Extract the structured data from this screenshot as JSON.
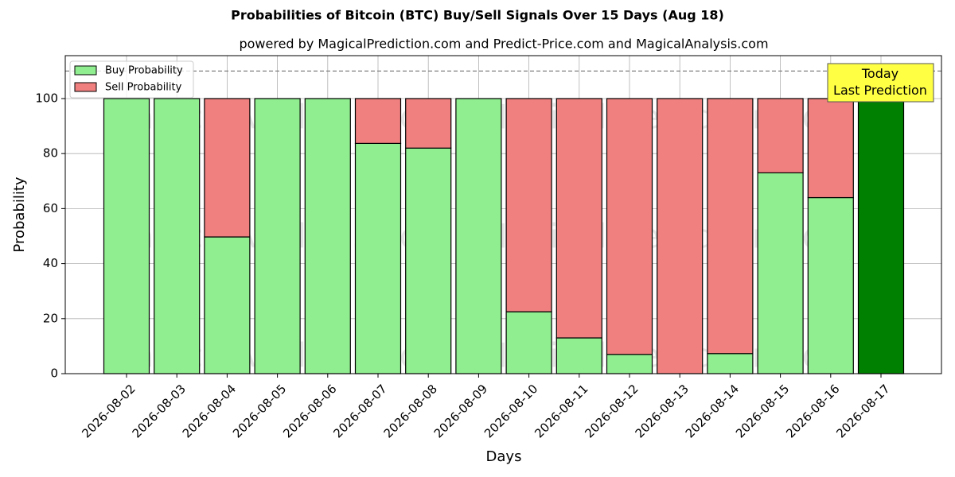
{
  "chart_data": {
    "type": "stacked_bar",
    "title": "Probabilities of Bitcoin (BTC) Buy/Sell Signals Over 15 Days (Aug 18)",
    "subtitle": "powered by MagicalPrediction.com and Predict-Price.com and MagicalAnalysis.com",
    "x_label": "Days",
    "y_label": "Probability",
    "categories": [
      "2026-08-02",
      "2026-08-03",
      "2026-08-04",
      "2026-08-05",
      "2026-08-06",
      "2026-08-07",
      "2026-08-08",
      "2026-08-09",
      "2026-08-10",
      "2026-08-11",
      "2026-08-12",
      "2026-08-13",
      "2026-08-14",
      "2026-08-15",
      "2026-08-16",
      "2026-08-17"
    ],
    "series": [
      {
        "name": "Buy Probability",
        "color": "#90ee90",
        "colors": [
          "#90ee90",
          "#90ee90",
          "#90ee90",
          "#90ee90",
          "#90ee90",
          "#90ee90",
          "#90ee90",
          "#90ee90",
          "#90ee90",
          "#90ee90",
          "#90ee90",
          "#90ee90",
          "#90ee90",
          "#90ee90",
          "#90ee90",
          "#008000"
        ],
        "values": [
          100,
          100,
          49.7,
          100,
          100,
          83.7,
          82,
          100,
          22.5,
          13,
          7,
          0,
          7.3,
          73,
          64,
          100
        ]
      },
      {
        "name": "Sell Probability",
        "color": "#f08080",
        "values": [
          0,
          0,
          50.3,
          0,
          0,
          16.3,
          18,
          0,
          77.5,
          87,
          93,
          100,
          92.7,
          27,
          36,
          0
        ]
      }
    ],
    "ylim": [
      0,
      115.6
    ],
    "yticks": [
      0,
      20,
      40,
      60,
      80,
      100
    ],
    "grid": true,
    "legend": "upper left",
    "hline": 110,
    "annotation": "Today\nLast Prediction",
    "watermarks": [
      "MagicalAnalysis.com",
      "MagicalPrediction.com"
    ]
  }
}
